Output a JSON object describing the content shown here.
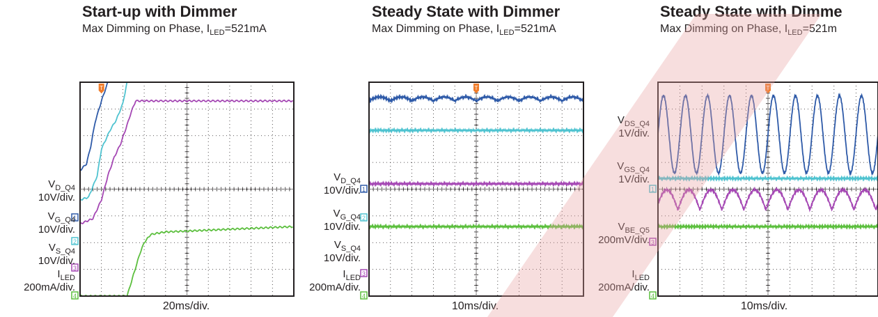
{
  "chart_data": [
    {
      "type": "line",
      "title": "Start-up with Dimmer",
      "subtitle_parts": [
        "Max Dimming on Phase, I",
        "LED",
        "=521mA"
      ],
      "xlabel": "20ms/div.",
      "grid": true,
      "trigger_marker": "T",
      "series": [
        {
          "name_main": "V",
          "name_sub": "D_Q4",
          "scale": "10V/div.",
          "marker": "1",
          "color": "#2e5aa8",
          "x": [
            0,
            0.3,
            0.5,
            0.7,
            1.0,
            1.3,
            1.5,
            1.8,
            2.0,
            2.2,
            2.5,
            3.0,
            10
          ],
          "y": [
            0.7,
            0.95,
            1.6,
            2.5,
            3.3,
            4.0,
            4.3,
            5.0,
            5.8,
            6.4,
            6.45,
            6.45,
            6.45
          ]
        },
        {
          "name_main": "V",
          "name_sub": "G_Q4",
          "scale": "10V/div.",
          "marker": "2",
          "color": "#4fc3d0",
          "x": [
            0,
            0.4,
            0.8,
            1.0,
            1.4,
            1.7,
            2.0,
            2.2,
            2.5,
            3.0,
            10
          ],
          "y": [
            -0.4,
            -0.3,
            0.5,
            1.5,
            2.2,
            2.6,
            3.2,
            4.0,
            5.0,
            5.4,
            5.4
          ]
        },
        {
          "name_main": "V",
          "name_sub": "S_Q4",
          "scale": "10V/div.",
          "marker": "3",
          "color": "#a548b4",
          "x": [
            0,
            0.6,
            1.0,
            1.3,
            1.6,
            1.9,
            2.2,
            2.4,
            2.6,
            3.0,
            10
          ],
          "y": [
            -1.3,
            -1.1,
            -0.4,
            0.5,
            1.2,
            1.7,
            2.4,
            2.9,
            3.3,
            3.3,
            3.3
          ]
        },
        {
          "name_main": "I",
          "name_sub": "LED",
          "scale": "200mA/div.",
          "marker": "4",
          "color": "#5cbf3e",
          "x": [
            0,
            2.2,
            2.5,
            2.8,
            3.0,
            3.3,
            3.6,
            4.0,
            10
          ],
          "y": [
            -4.0,
            -4.0,
            -3.2,
            -2.4,
            -2.0,
            -1.7,
            -1.65,
            -1.6,
            -1.4
          ]
        }
      ]
    },
    {
      "type": "line",
      "title": "Steady State with Dimmer",
      "subtitle_parts": [
        "Max Dimming on Phase, I",
        "LED",
        "=521mA"
      ],
      "xlabel": "10ms/div.",
      "grid": true,
      "trigger_marker": "T",
      "series": [
        {
          "name_main": "V",
          "name_sub": "D_Q4",
          "scale": "10V/div.",
          "marker": "1",
          "color": "#2e5aa8",
          "level": 3.3,
          "ripple_cycles": 10,
          "ripple_amp": 0.15
        },
        {
          "name_main": "V",
          "name_sub": "G_Q4",
          "scale": "10V/div.",
          "marker": "2",
          "color": "#4fc3d0",
          "level": 2.2,
          "ripple_cycles": 0,
          "ripple_amp": 0
        },
        {
          "name_main": "V",
          "name_sub": "S_Q4",
          "scale": "10V/div.",
          "marker": "3",
          "color": "#a548b4",
          "level": 0.2,
          "ripple_cycles": 0,
          "ripple_amp": 0
        },
        {
          "name_main": "I",
          "name_sub": "LED",
          "scale": "200mA/div.",
          "marker": "4",
          "color": "#5cbf3e",
          "level": -1.4,
          "ripple_cycles": 0,
          "ripple_amp": 0
        }
      ]
    },
    {
      "type": "line",
      "title": "Steady State with Dimme",
      "subtitle_parts": [
        "Max Dimming on Phase, I",
        "LED",
        "=521m"
      ],
      "xlabel": "10ms/div.",
      "grid": true,
      "trigger_marker": "T",
      "series": [
        {
          "name_main": "V",
          "name_sub": "DS_Q4",
          "scale": "1V/div.",
          "marker": "",
          "color": "#2e5aa8",
          "level": 2.05,
          "ripple_cycles": 10,
          "ripple_amp": 1.45
        },
        {
          "name_main": "V",
          "name_sub": "GS_Q4",
          "scale": "1V/div.",
          "marker": "1",
          "color": "#4fc3d0",
          "level": 0.4,
          "ripple_cycles": 0,
          "ripple_amp": 0
        },
        {
          "name_main": "V",
          "name_sub": "BE_Q5",
          "scale": "200mV/div.",
          "marker": "3",
          "color": "#a548b4",
          "level": -0.55,
          "ripple_cycles": 10,
          "ripple_amp": 0.75
        },
        {
          "name_main": "I",
          "name_sub": "LED",
          "scale": "200mA/div.",
          "marker": "4",
          "color": "#5cbf3e",
          "level": -1.4,
          "ripple_cycles": 0,
          "ripple_amp": 0
        }
      ]
    }
  ]
}
